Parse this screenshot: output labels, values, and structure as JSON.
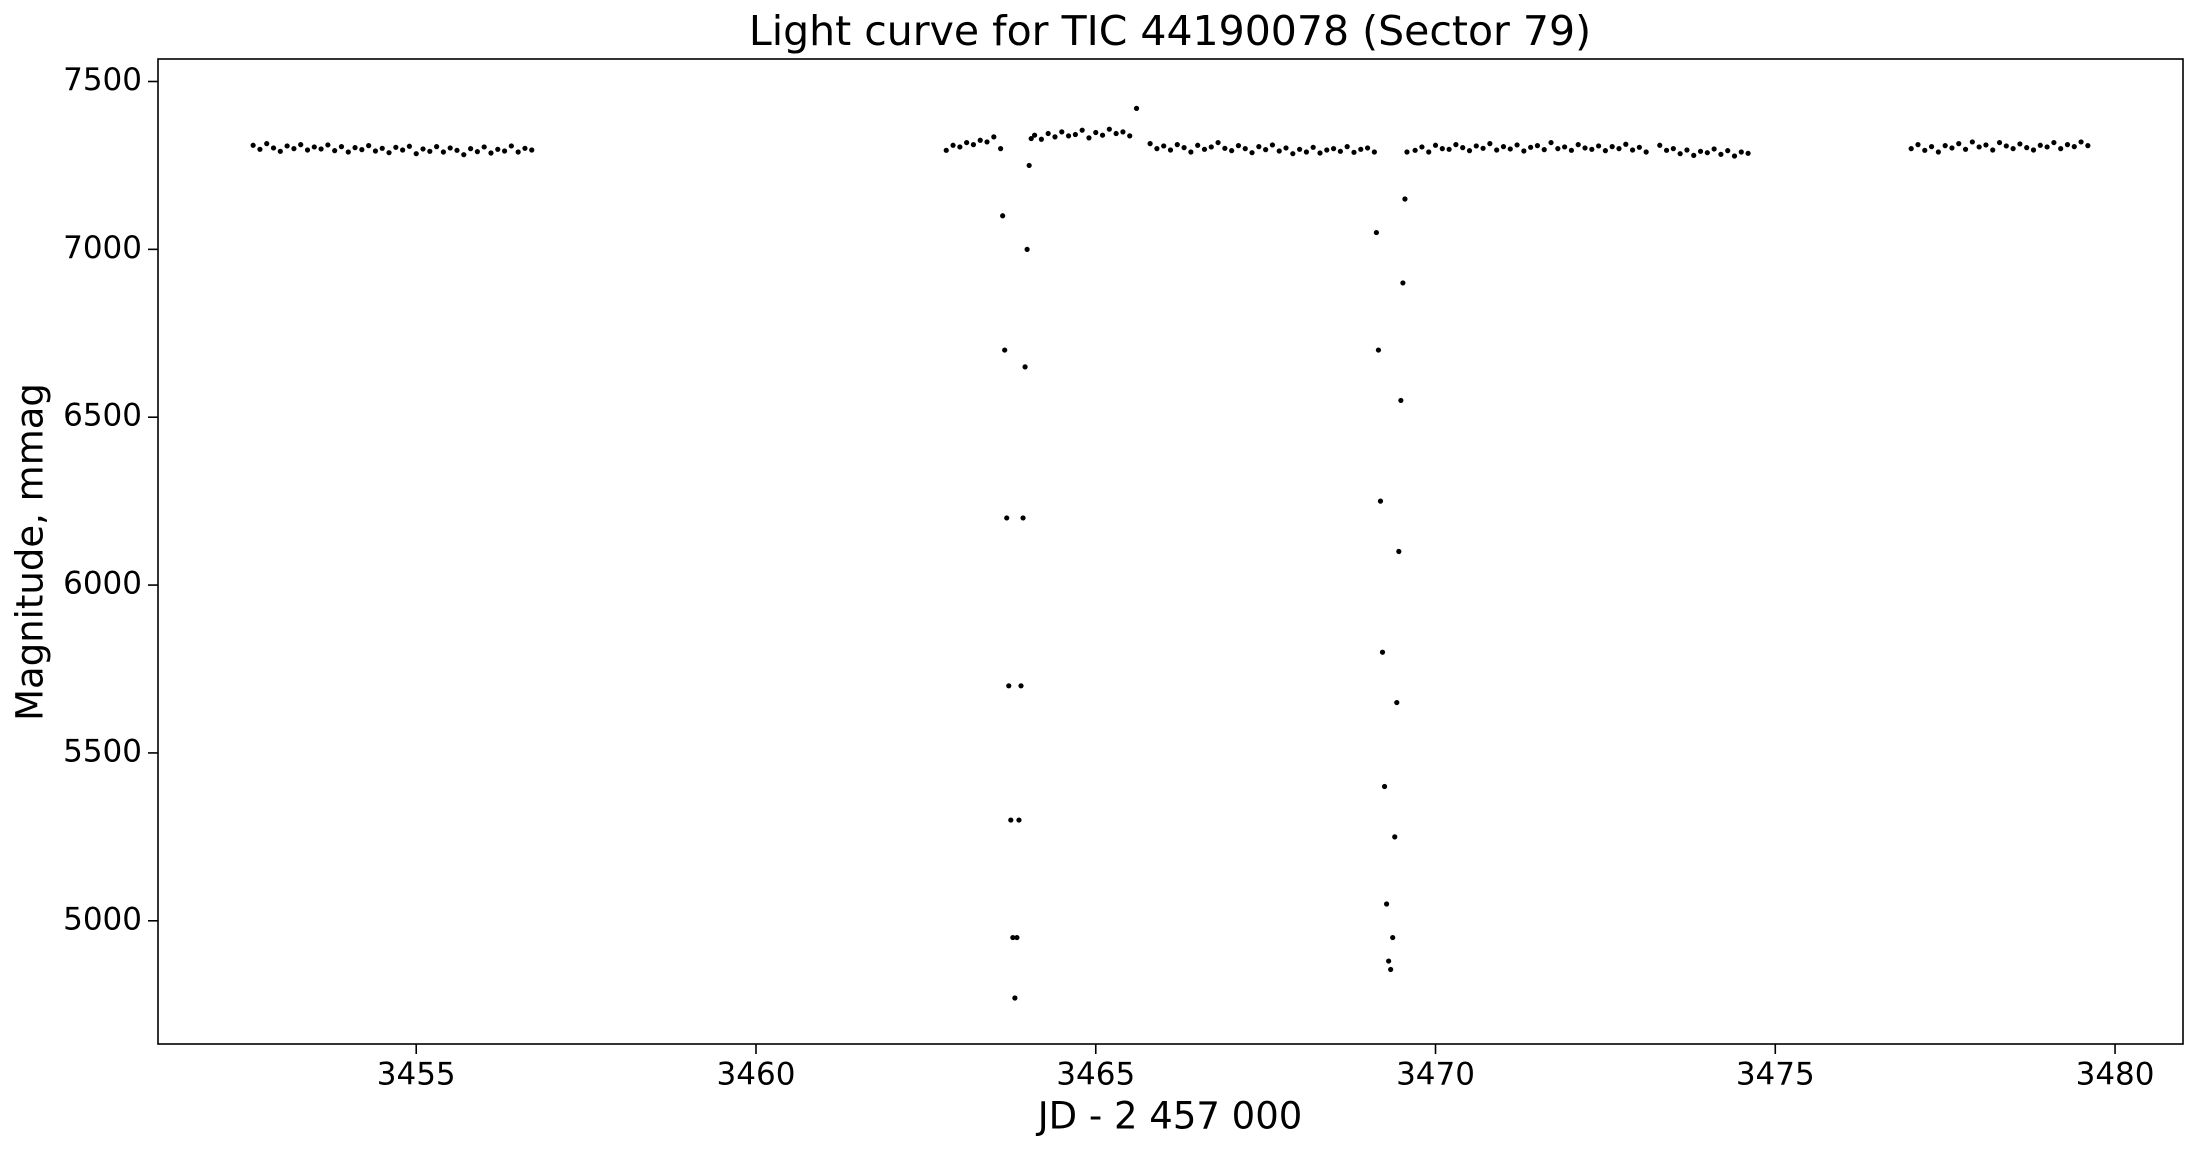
{
  "chart_data": {
    "type": "scatter",
    "title": "Light curve for TIC 44190078 (Sector 79)",
    "xlabel": "JD - 2 457 000",
    "ylabel": "Magnitude, mmag",
    "color": "#000000",
    "xlim": [
      3451.2,
      3481.0
    ],
    "ylim": [
      4633,
      7567
    ],
    "xticks": [
      3455,
      3460,
      3465,
      3470,
      3475,
      3480
    ],
    "yticks": [
      5000,
      5500,
      6000,
      6500,
      7000,
      7500
    ],
    "x": [
      3452.6,
      3452.7,
      3452.8,
      3452.9,
      3453.0,
      3453.1,
      3453.2,
      3453.3,
      3453.4,
      3453.5,
      3453.6,
      3453.7,
      3453.8,
      3453.9,
      3454.0,
      3454.1,
      3454.2,
      3454.3,
      3454.4,
      3454.5,
      3454.6,
      3454.7,
      3454.8,
      3454.9,
      3455.0,
      3455.1,
      3455.2,
      3455.3,
      3455.4,
      3455.5,
      3455.6,
      3455.7,
      3455.8,
      3455.9,
      3456.0,
      3456.1,
      3456.2,
      3456.3,
      3456.4,
      3456.5,
      3456.6,
      3456.7,
      3462.8,
      3462.9,
      3463.0,
      3463.1,
      3463.2,
      3463.3,
      3463.4,
      3463.5,
      3463.6,
      3463.63,
      3463.66,
      3463.69,
      3463.72,
      3463.75,
      3463.78,
      3463.81,
      3463.84,
      3463.87,
      3463.9,
      3463.93,
      3463.96,
      3463.99,
      3464.02,
      3464.05,
      3464.1,
      3464.2,
      3464.3,
      3464.4,
      3464.5,
      3464.6,
      3464.7,
      3464.8,
      3464.9,
      3465.0,
      3465.1,
      3465.2,
      3465.3,
      3465.4,
      3465.5,
      3465.6,
      3465.8,
      3465.9,
      3466.0,
      3466.1,
      3466.2,
      3466.3,
      3466.4,
      3466.5,
      3466.6,
      3466.7,
      3466.8,
      3466.9,
      3467.0,
      3467.1,
      3467.2,
      3467.3,
      3467.4,
      3467.5,
      3467.6,
      3467.7,
      3467.8,
      3467.9,
      3468.0,
      3468.1,
      3468.2,
      3468.3,
      3468.4,
      3468.5,
      3468.6,
      3468.7,
      3468.8,
      3468.9,
      3469.0,
      3469.1,
      3469.13,
      3469.16,
      3469.19,
      3469.22,
      3469.25,
      3469.28,
      3469.31,
      3469.34,
      3469.37,
      3469.4,
      3469.43,
      3469.46,
      3469.49,
      3469.52,
      3469.55,
      3469.58,
      3469.7,
      3469.8,
      3469.9,
      3470.0,
      3470.1,
      3470.2,
      3470.3,
      3470.4,
      3470.5,
      3470.6,
      3470.7,
      3470.8,
      3470.9,
      3471.0,
      3471.1,
      3471.2,
      3471.3,
      3471.4,
      3471.5,
      3471.6,
      3471.7,
      3471.8,
      3471.9,
      3472.0,
      3472.1,
      3472.2,
      3472.3,
      3472.4,
      3472.5,
      3472.6,
      3472.7,
      3472.8,
      3472.9,
      3473.0,
      3473.1,
      3473.3,
      3473.4,
      3473.5,
      3473.6,
      3473.7,
      3473.8,
      3473.9,
      3474.0,
      3474.1,
      3474.2,
      3474.3,
      3474.4,
      3474.5,
      3474.6,
      3477.0,
      3477.1,
      3477.2,
      3477.3,
      3477.4,
      3477.5,
      3477.6,
      3477.7,
      3477.8,
      3477.9,
      3478.0,
      3478.1,
      3478.2,
      3478.3,
      3478.4,
      3478.5,
      3478.6,
      3478.7,
      3478.8,
      3478.9,
      3479.0,
      3479.1,
      3479.2,
      3479.3,
      3479.4,
      3479.5,
      3479.6
    ],
    "values": [
      7310,
      7298,
      7315,
      7302,
      7292,
      7308,
      7300,
      7312,
      7296,
      7305,
      7299,
      7311,
      7294,
      7306,
      7290,
      7303,
      7297,
      7309,
      7293,
      7301,
      7288,
      7304,
      7296,
      7307,
      7285,
      7299,
      7292,
      7306,
      7290,
      7302,
      7295,
      7282,
      7300,
      7291,
      7305,
      7287,
      7298,
      7293,
      7308,
      7290,
      7301,
      7296,
      7295,
      7310,
      7305,
      7318,
      7312,
      7325,
      7320,
      7335,
      7300,
      7100,
      6700,
      6200,
      5700,
      5300,
      4950,
      4770,
      4950,
      5300,
      5700,
      6200,
      6650,
      7000,
      7250,
      7330,
      7340,
      7328,
      7345,
      7335,
      7350,
      7338,
      7342,
      7355,
      7332,
      7348,
      7340,
      7358,
      7345,
      7350,
      7338,
      7420,
      7315,
      7300,
      7308,
      7296,
      7312,
      7303,
      7290,
      7310,
      7298,
      7305,
      7318,
      7301,
      7294,
      7309,
      7300,
      7288,
      7306,
      7297,
      7311,
      7293,
      7302,
      7285,
      7298,
      7290,
      7304,
      7287,
      7296,
      7300,
      7292,
      7306,
      7289,
      7298,
      7302,
      7290,
      7050,
      6700,
      6250,
      5800,
      5400,
      5050,
      4880,
      4855,
      4950,
      5250,
      5650,
      6100,
      6550,
      6900,
      7150,
      7290,
      7295,
      7305,
      7290,
      7310,
      7300,
      7298,
      7312,
      7303,
      7294,
      7308,
      7301,
      7315,
      7296,
      7306,
      7299,
      7311,
      7293,
      7304,
      7309,
      7297,
      7318,
      7300,
      7305,
      7295,
      7312,
      7302,
      7298,
      7308,
      7294,
      7306,
      7300,
      7313,
      7296,
      7304,
      7290,
      7310,
      7295,
      7300,
      7285,
      7296,
      7280,
      7292,
      7288,
      7299,
      7283,
      7294,
      7278,
      7290,
      7286,
      7300,
      7312,
      7295,
      7306,
      7290,
      7309,
      7302,
      7315,
      7298,
      7320,
      7305,
      7311,
      7296,
      7318,
      7308,
      7300,
      7314,
      7303,
      7296,
      7310,
      7305,
      7318,
      7300,
      7312,
      7306,
      7320,
      7309
    ]
  }
}
